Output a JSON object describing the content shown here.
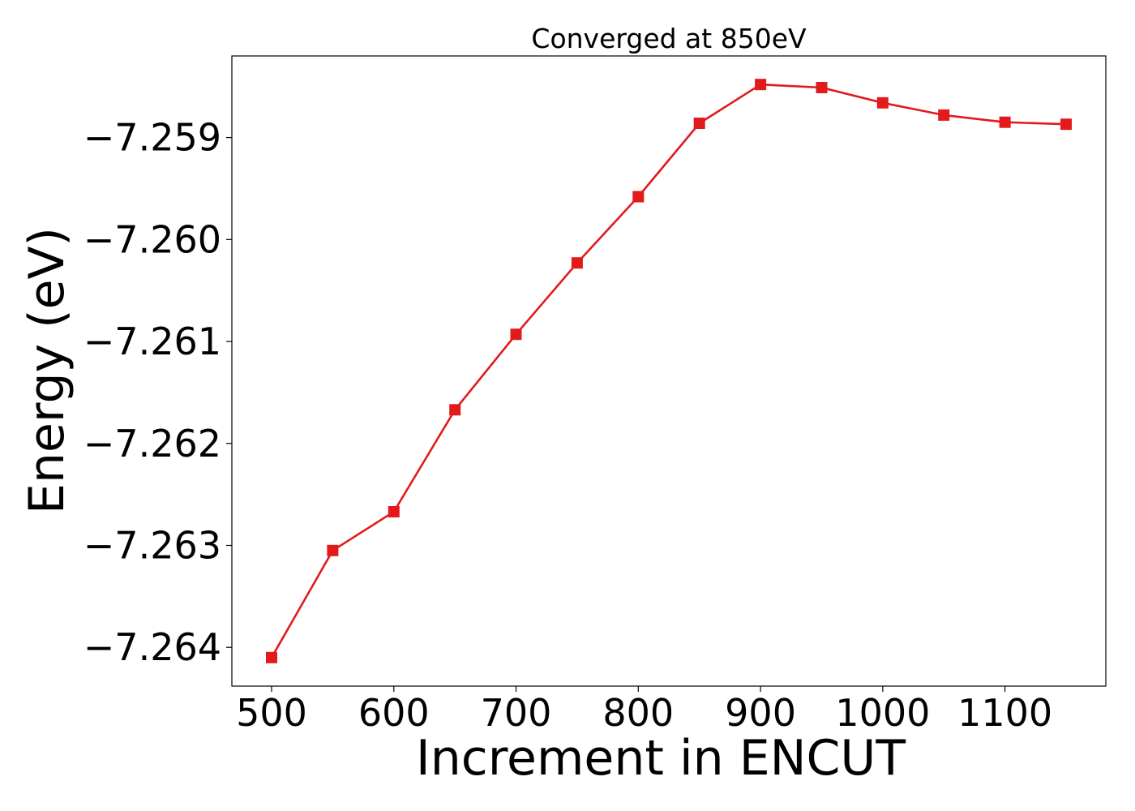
{
  "chart_data": {
    "type": "line",
    "title": "Converged at 850eV",
    "xlabel": "Increment in ENCUT",
    "ylabel": "Energy (eV)",
    "x": [
      500,
      550,
      600,
      650,
      700,
      750,
      800,
      850,
      900,
      950,
      1000,
      1050,
      1100,
      1150
    ],
    "series": [
      {
        "values": [
          -7.2641,
          -7.26305,
          -7.26267,
          -7.26167,
          -7.26093,
          -7.26023,
          -7.25958,
          -7.25886,
          -7.25848,
          -7.25851,
          -7.25866,
          -7.25878,
          -7.25885,
          -7.25887
        ],
        "color": "#e31a1c",
        "marker": "square"
      }
    ],
    "xlim": [
      467.5,
      1182.5
    ],
    "ylim": [
      -7.26438,
      -7.2582
    ],
    "xticks": [
      500,
      600,
      700,
      800,
      900,
      1000,
      1100
    ],
    "yticks": [
      -7.259,
      -7.26,
      -7.261,
      -7.262,
      -7.263,
      -7.264
    ],
    "xtick_labels": [
      "500",
      "600",
      "700",
      "800",
      "900",
      "1000",
      "1100"
    ],
    "ytick_labels": [
      "−7.259",
      "−7.260",
      "−7.261",
      "−7.262",
      "−7.263",
      "−7.264"
    ],
    "grid": false,
    "legend": "none"
  }
}
